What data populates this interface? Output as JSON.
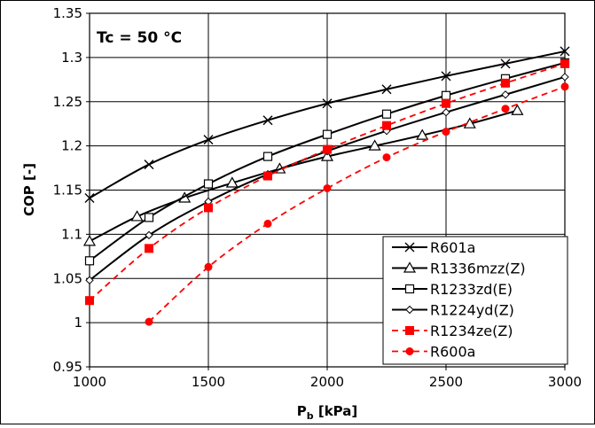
{
  "chart_data": {
    "type": "line",
    "annotation": "Tc = 50 °C",
    "xlabel_main": "P",
    "xlabel_sub": "b",
    "xlabel_unit": " [kPa]",
    "ylabel": "COP [-]",
    "xlim": [
      1000,
      3000
    ],
    "ylim": [
      0.95,
      1.35
    ],
    "xticks": [
      1000,
      1500,
      2000,
      2500,
      3000
    ],
    "yticks": [
      0.95,
      1.0,
      1.05,
      1.1,
      1.15,
      1.2,
      1.25,
      1.3,
      1.35
    ],
    "ytick_labels": [
      "0.95",
      "1",
      "1.05",
      "1.1",
      "1.15",
      "1.2",
      "1.25",
      "1.3",
      "1.35"
    ],
    "grid": true,
    "legend_position": "bottom-right",
    "series": [
      {
        "name": "R601a",
        "color": "#000000",
        "dash": false,
        "marker": "x",
        "x": [
          1000,
          1250,
          1500,
          1750,
          2000,
          2250,
          2500,
          2750,
          3000
        ],
        "y": [
          1.141,
          1.179,
          1.207,
          1.229,
          1.248,
          1.264,
          1.279,
          1.293,
          1.307
        ]
      },
      {
        "name": "R1336mzz(Z)",
        "color": "#000000",
        "dash": false,
        "marker": "triangle-open",
        "x": [
          1000,
          1200,
          1400,
          1600,
          1800,
          2000,
          2200,
          2400,
          2600,
          2800
        ],
        "y": [
          1.092,
          1.12,
          1.141,
          1.158,
          1.174,
          1.188,
          1.2,
          1.212,
          1.225,
          1.24
        ]
      },
      {
        "name": "R1233zd(E)",
        "color": "#000000",
        "dash": false,
        "marker": "square-open",
        "x": [
          1000,
          1250,
          1500,
          1750,
          2000,
          2250,
          2500,
          2750,
          3000
        ],
        "y": [
          1.07,
          1.119,
          1.157,
          1.188,
          1.213,
          1.236,
          1.257,
          1.276,
          1.294
        ]
      },
      {
        "name": "R1224yd(Z)",
        "color": "#000000",
        "dash": false,
        "marker": "diamond-open",
        "x": [
          1000,
          1250,
          1500,
          1750,
          2000,
          2250,
          2500,
          2750,
          3000
        ],
        "y": [
          1.048,
          1.099,
          1.137,
          1.168,
          1.194,
          1.217,
          1.238,
          1.258,
          1.278
        ]
      },
      {
        "name": "R1234ze(Z)",
        "color": "#ff0000",
        "dash": true,
        "marker": "square-filled",
        "x": [
          1000,
          1250,
          1500,
          1750,
          2000,
          2250,
          2500,
          2750,
          3000
        ],
        "y": [
          1.025,
          1.084,
          1.13,
          1.166,
          1.196,
          1.223,
          1.248,
          1.271,
          1.293
        ]
      },
      {
        "name": "R600a",
        "color": "#ff0000",
        "dash": true,
        "marker": "circle-filled",
        "x": [
          1250,
          1500,
          1750,
          2000,
          2250,
          2500,
          2750,
          3000
        ],
        "y": [
          1.001,
          1.063,
          1.112,
          1.152,
          1.187,
          1.216,
          1.242,
          1.267
        ]
      }
    ]
  }
}
